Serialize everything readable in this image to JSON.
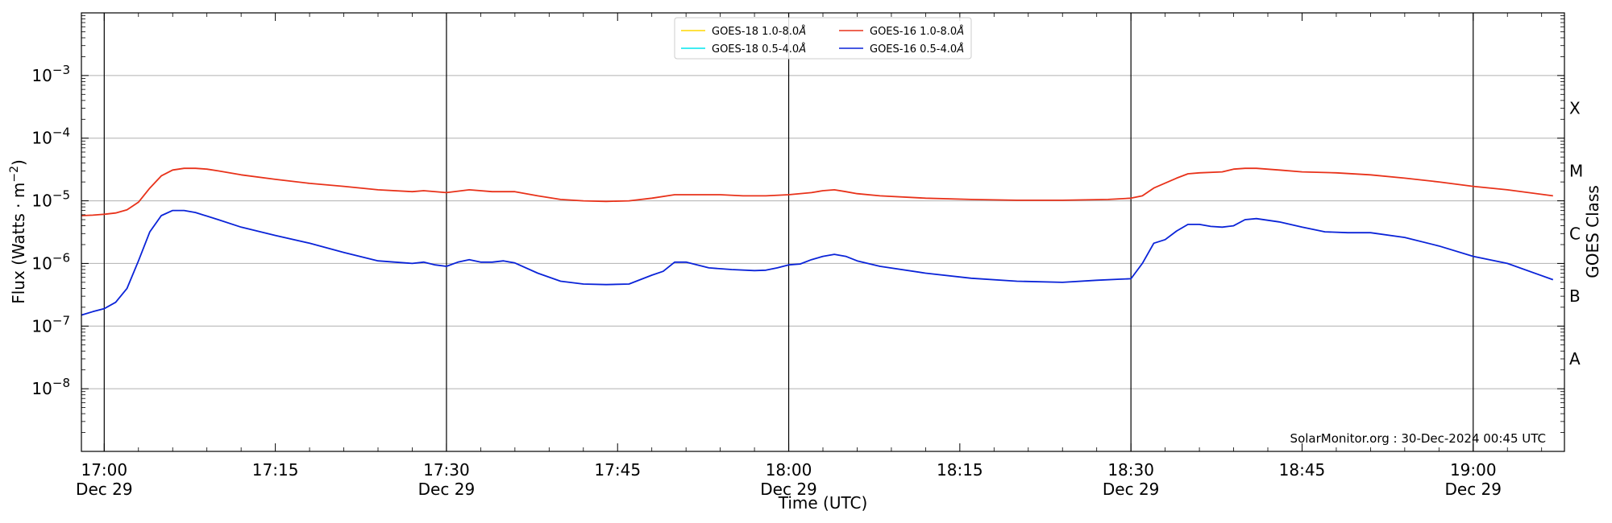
{
  "chart_data": {
    "type": "line",
    "title": "",
    "xlabel": "Time (UTC)",
    "ylabel_main": "Flux (Watts · m",
    "ylabel_exp": "−2",
    "ylabel_close": ")",
    "y2label": "GOES Class",
    "y_scale": "log",
    "ylim": [
      1e-09,
      0.01
    ],
    "xlim": [
      "16:58",
      "19:08"
    ],
    "grid": "horizontal at major decades",
    "legend_placement": "top-center",
    "watermark": "SolarMonitor.org : 30-Dec-2024 00:45 UTC",
    "x_ticks": [
      {
        "time": "17:00",
        "label": "17:00",
        "sublabel": "Dec 29",
        "major": true
      },
      {
        "time": "17:15",
        "label": "17:15",
        "sublabel": "",
        "major": false
      },
      {
        "time": "17:30",
        "label": "17:30",
        "sublabel": "Dec 29",
        "major": true
      },
      {
        "time": "17:45",
        "label": "17:45",
        "sublabel": "",
        "major": false
      },
      {
        "time": "18:00",
        "label": "18:00",
        "sublabel": "Dec 29",
        "major": true
      },
      {
        "time": "18:15",
        "label": "18:15",
        "sublabel": "",
        "major": false
      },
      {
        "time": "18:30",
        "label": "18:30",
        "sublabel": "Dec 29",
        "major": true
      },
      {
        "time": "18:45",
        "label": "18:45",
        "sublabel": "",
        "major": false
      },
      {
        "time": "19:00",
        "label": "19:00",
        "sublabel": "Dec 29",
        "major": true
      }
    ],
    "y_ticks": [
      {
        "value": 1e-08,
        "base": "10",
        "exp": "−8"
      },
      {
        "value": 1e-07,
        "base": "10",
        "exp": "−7"
      },
      {
        "value": 1e-06,
        "base": "10",
        "exp": "−6"
      },
      {
        "value": 1e-05,
        "base": "10",
        "exp": "−5"
      },
      {
        "value": 0.0001,
        "base": "10",
        "exp": "−4"
      },
      {
        "value": 0.001,
        "base": "10",
        "exp": "−3"
      }
    ],
    "goes_classes": [
      {
        "label": "A",
        "value": 3e-08
      },
      {
        "label": "B",
        "value": 3e-07
      },
      {
        "label": "C",
        "value": 3e-06
      },
      {
        "label": "M",
        "value": 3e-05
      },
      {
        "label": "X",
        "value": 0.0003
      }
    ],
    "legend": [
      {
        "name": "GOES-18 1.0-8.0",
        "unit": "Å",
        "color": "#ffd700"
      },
      {
        "name": "GOES-18 0.5-4.0",
        "unit": "Å",
        "color": "#00e5ee"
      },
      {
        "name": "GOES-16 1.0-8.0",
        "unit": "Å",
        "color": "#e8321a"
      },
      {
        "name": "GOES-16 0.5-4.0",
        "unit": "Å",
        "color": "#0a23d8"
      }
    ],
    "series": [
      {
        "name": "GOES-16 1.0-8.0Å",
        "color": "#e8321a",
        "x": [
          "16:58",
          "16:59",
          "17:00",
          "17:01",
          "17:02",
          "17:03",
          "17:04",
          "17:05",
          "17:06",
          "17:07",
          "17:08",
          "17:09",
          "17:10",
          "17:12",
          "17:15",
          "17:18",
          "17:21",
          "17:24",
          "17:27",
          "17:28",
          "17:30",
          "17:32",
          "17:34",
          "17:36",
          "17:38",
          "17:40",
          "17:42",
          "17:44",
          "17:46",
          "17:48",
          "17:50",
          "17:52",
          "17:54",
          "17:56",
          "17:58",
          "18:00",
          "18:02",
          "18:03",
          "18:04",
          "18:05",
          "18:06",
          "18:08",
          "18:12",
          "18:16",
          "18:20",
          "18:24",
          "18:28",
          "18:30",
          "18:31",
          "18:32",
          "18:34",
          "18:35",
          "18:36",
          "18:38",
          "18:39",
          "18:40",
          "18:41",
          "18:43",
          "18:45",
          "18:48",
          "18:51",
          "18:54",
          "18:57",
          "19:00",
          "19:03",
          "19:07"
        ],
        "values": [
          5.8e-06,
          5.9e-06,
          6.1e-06,
          6.4e-06,
          7.2e-06,
          9.5e-06,
          1.6e-05,
          2.5e-05,
          3.1e-05,
          3.3e-05,
          3.3e-05,
          3.2e-05,
          3e-05,
          2.6e-05,
          2.2e-05,
          1.9e-05,
          1.7e-05,
          1.5e-05,
          1.4e-05,
          1.45e-05,
          1.35e-05,
          1.5e-05,
          1.4e-05,
          1.4e-05,
          1.2e-05,
          1.05e-05,
          1e-05,
          9.8e-06,
          1e-05,
          1.1e-05,
          1.25e-05,
          1.25e-05,
          1.25e-05,
          1.2e-05,
          1.2e-05,
          1.25e-05,
          1.35e-05,
          1.45e-05,
          1.5e-05,
          1.4e-05,
          1.3e-05,
          1.2e-05,
          1.1e-05,
          1.05e-05,
          1.02e-05,
          1.02e-05,
          1.05e-05,
          1.1e-05,
          1.2e-05,
          1.6e-05,
          2.3e-05,
          2.7e-05,
          2.8e-05,
          2.9e-05,
          3.2e-05,
          3.3e-05,
          3.3e-05,
          3.1e-05,
          2.9e-05,
          2.8e-05,
          2.6e-05,
          2.3e-05,
          2e-05,
          1.7e-05,
          1.5e-05,
          1.2e-05
        ]
      },
      {
        "name": "GOES-16 0.5-4.0Å",
        "color": "#0a23d8",
        "x": [
          "16:58",
          "16:59",
          "17:00",
          "17:01",
          "17:02",
          "17:03",
          "17:04",
          "17:05",
          "17:06",
          "17:07",
          "17:08",
          "17:10",
          "17:12",
          "17:15",
          "17:18",
          "17:21",
          "17:24",
          "17:27",
          "17:28",
          "17:29",
          "17:30",
          "17:31",
          "17:32",
          "17:33",
          "17:34",
          "17:35",
          "17:36",
          "17:38",
          "17:40",
          "17:42",
          "17:44",
          "17:46",
          "17:48",
          "17:49",
          "17:50",
          "17:51",
          "17:53",
          "17:55",
          "17:57",
          "17:58",
          "17:59",
          "18:00",
          "18:01",
          "18:02",
          "18:03",
          "18:04",
          "18:05",
          "18:06",
          "18:08",
          "18:12",
          "18:16",
          "18:20",
          "18:24",
          "18:27",
          "18:29",
          "18:30",
          "18:31",
          "18:32",
          "18:33",
          "18:34",
          "18:35",
          "18:36",
          "18:37",
          "18:38",
          "18:39",
          "18:40",
          "18:41",
          "18:43",
          "18:45",
          "18:47",
          "18:49",
          "18:51",
          "18:54",
          "18:57",
          "19:00",
          "19:03",
          "19:07"
        ],
        "values": [
          1.5e-07,
          1.7e-07,
          1.9e-07,
          2.4e-07,
          4e-07,
          1.1e-06,
          3.2e-06,
          5.8e-06,
          7e-06,
          7e-06,
          6.5e-06,
          5e-06,
          3.8e-06,
          2.8e-06,
          2.1e-06,
          1.5e-06,
          1.1e-06,
          1e-06,
          1.05e-06,
          9.5e-07,
          9e-07,
          1.05e-06,
          1.15e-06,
          1.05e-06,
          1.05e-06,
          1.1e-06,
          1.02e-06,
          7e-07,
          5.2e-07,
          4.7e-07,
          4.6e-07,
          4.7e-07,
          6.5e-07,
          7.5e-07,
          1.05e-06,
          1.05e-06,
          8.5e-07,
          8e-07,
          7.7e-07,
          7.8e-07,
          8.5e-07,
          9.5e-07,
          9.8e-07,
          1.15e-06,
          1.3e-06,
          1.4e-06,
          1.3e-06,
          1.1e-06,
          9e-07,
          7e-07,
          5.8e-07,
          5.2e-07,
          5e-07,
          5.4e-07,
          5.6e-07,
          5.7e-07,
          1e-06,
          2.1e-06,
          2.4e-06,
          3.3e-06,
          4.2e-06,
          4.2e-06,
          3.9e-06,
          3.8e-06,
          4e-06,
          5e-06,
          5.2e-06,
          4.6e-06,
          3.8e-06,
          3.2e-06,
          3.1e-06,
          3.1e-06,
          2.6e-06,
          1.9e-06,
          1.3e-06,
          1e-06,
          5.5e-07
        ]
      }
    ]
  }
}
